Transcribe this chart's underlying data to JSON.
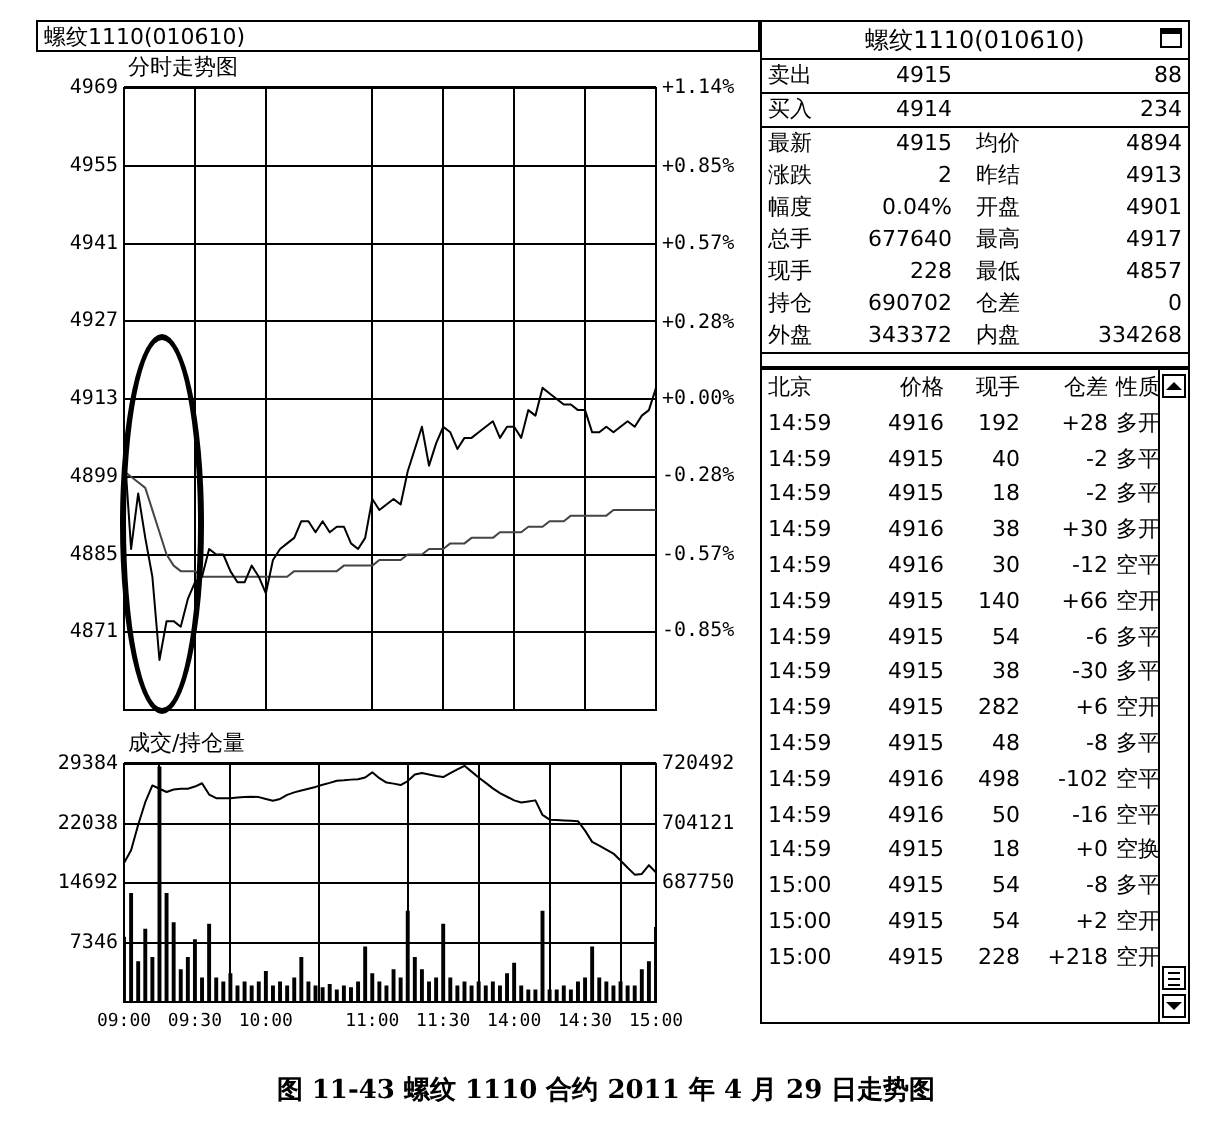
{
  "chart_data": [
    {
      "type": "line",
      "subtitle": "螺纹1110(010610)",
      "title": "分时走势图",
      "annotations": [
        "图 11-43  螺纹 1110 合约 2011 年 4 月 29 日走势图"
      ],
      "categories": [
        null,
        null,
        null,
        null,
        null,
        null,
        null,
        null,
        null,
        null,
        null,
        null,
        null,
        null,
        null,
        null,
        null,
        null,
        null,
        null,
        null,
        null,
        null,
        null,
        null,
        null,
        null,
        null,
        null,
        null,
        null,
        null,
        null,
        null,
        null,
        null,
        null,
        null,
        null,
        null,
        null,
        null,
        null,
        null,
        null,
        null,
        null,
        null,
        null,
        null,
        null,
        null,
        null,
        null,
        null,
        null,
        null,
        null,
        null,
        null,
        null,
        null,
        null,
        null,
        null,
        null,
        null,
        null,
        null,
        null,
        null,
        null,
        null,
        null,
        null,
        null
      ],
      "ylim": [
        4857,
        4969
      ],
      "yticks": [
        4871,
        4885,
        4899,
        4913,
        4927,
        4941,
        4955,
        4969
      ],
      "y2lim": [
        -1.14,
        1.14
      ],
      "y2ticks": [
        {
          "value": -0.85,
          "label": "-0.85%"
        },
        {
          "value": -0.57,
          "label": "-0.57%"
        },
        {
          "value": -0.28,
          "label": "-0.28%"
        },
        {
          "value": 0,
          "label": "+0.00%"
        },
        {
          "value": 0.28,
          "label": "+0.28%"
        },
        {
          "value": 0.57,
          "label": "+0.57%"
        },
        {
          "value": 0.85,
          "label": "+0.85%"
        },
        {
          "value": 1.14,
          "label": "+1.14%"
        }
      ],
      "tick_labels": "y",
      "grid": true,
      "legend": false,
      "marker": "none",
      "series": [
        {
          "color": "#000000",
          "values": [
            4905,
            4886,
            4896,
            4888,
            4881,
            4866,
            4873,
            4873,
            4872,
            4877,
            4880,
            4881,
            4886,
            4885,
            4885,
            4882,
            4880,
            4880,
            4883,
            4881,
            4878,
            4884,
            4886,
            4887,
            4888,
            4891,
            4891,
            4889,
            4891,
            4889,
            4890,
            4890,
            4887,
            4886,
            4888,
            4895,
            4893,
            4894,
            4895,
            4894,
            4900,
            4904,
            4908,
            4901,
            4905,
            4908,
            4907,
            4904,
            4906,
            4906,
            4907,
            4908,
            4909,
            4906,
            4908,
            4908,
            4906,
            4911,
            4910,
            4915,
            4914,
            4913,
            4912,
            4912,
            4911,
            4911,
            4907,
            4907,
            4908,
            4907,
            4908,
            4909,
            4908,
            4910,
            4911,
            4915
          ]
        },
        {
          "color": "#444444",
          "values": [
            4900,
            4899,
            4898,
            4897,
            4893,
            4889,
            4885,
            4883,
            4882,
            4882,
            4882,
            4881,
            4881,
            4881,
            4881,
            4881,
            4881,
            4881,
            4881,
            4881,
            4881,
            4881,
            4881,
            4881,
            4882,
            4882,
            4882,
            4882,
            4882,
            4882,
            4882,
            4883,
            4883,
            4883,
            4883,
            4883,
            4884,
            4884,
            4884,
            4884,
            4885,
            4885,
            4885,
            4886,
            4886,
            4886,
            4887,
            4887,
            4887,
            4888,
            4888,
            4888,
            4888,
            4889,
            4889,
            4889,
            4889,
            4890,
            4890,
            4890,
            4891,
            4891,
            4891,
            4892,
            4892,
            4892,
            4892,
            4892,
            4892,
            4893,
            4893,
            4893,
            4893,
            4893,
            4893,
            4893
          ]
        }
      ]
    },
    {
      "type": "bar",
      "title": "成交/持仓量",
      "categories": [
        "09:00",
        null,
        null,
        null,
        null,
        null,
        null,
        null,
        null,
        null,
        "09:30",
        null,
        null,
        null,
        null,
        null,
        null,
        null,
        null,
        null,
        "10:00",
        null,
        null,
        null,
        null,
        null,
        null,
        null,
        null,
        null,
        null,
        null,
        null,
        null,
        null,
        "11:00",
        null,
        null,
        null,
        null,
        null,
        null,
        null,
        null,
        null,
        "11:30",
        null,
        null,
        null,
        null,
        null,
        null,
        null,
        null,
        null,
        "14:00",
        null,
        null,
        null,
        null,
        null,
        null,
        null,
        null,
        null,
        "14:30",
        null,
        null,
        null,
        null,
        null,
        null,
        null,
        null,
        null,
        "15:00"
      ],
      "ylim": [
        0,
        29384
      ],
      "yticks": [
        7346,
        14692,
        22038,
        29384
      ],
      "y2lim": [
        655008,
        720492
      ],
      "y2ticks": [
        687750,
        704121,
        720492
      ],
      "grid": true,
      "legend": false,
      "marker": "none",
      "series": [
        {
          "type": "bar",
          "color": "#000000",
          "values": [
            8000,
            13400,
            5000,
            9000,
            5500,
            29000,
            13400,
            9800,
            4000,
            5500,
            7700,
            3000,
            9600,
            3000,
            2500,
            3500,
            2000,
            2500,
            2000,
            2500,
            3800,
            2000,
            2500,
            2000,
            3000,
            5500,
            2500,
            2000,
            1800,
            2200,
            1500,
            2000,
            1800,
            2500,
            6800,
            3500,
            2500,
            2000,
            4000,
            3000,
            11200,
            5500,
            4000,
            2500,
            3000,
            9600,
            3000,
            2000,
            2500,
            2000,
            2500,
            2000,
            2500,
            2000,
            3500,
            4800,
            2000,
            1500,
            1500,
            11200,
            1500,
            1500,
            2000,
            1500,
            2500,
            3000,
            6800,
            3000,
            2500,
            2000,
            2500,
            2000,
            2000,
            4000,
            5000,
            9200
          ]
        },
        {
          "type": "line",
          "axis": "y2",
          "color": "#000000",
          "values": [
            693300,
            696800,
            703800,
            710000,
            714600,
            713700,
            712800,
            713500,
            713700,
            713700,
            714300,
            715200,
            712100,
            711100,
            711100,
            711100,
            711300,
            711400,
            711500,
            711400,
            710900,
            710400,
            710900,
            712000,
            712700,
            713200,
            713700,
            714200,
            714800,
            715300,
            715900,
            716000,
            716200,
            716300,
            716800,
            718200,
            716600,
            715400,
            715100,
            714700,
            715800,
            717600,
            718000,
            717600,
            717200,
            716900,
            718000,
            719000,
            720000,
            718400,
            716800,
            715300,
            713800,
            712500,
            711500,
            710500,
            709900,
            710200,
            710500,
            706500,
            705200,
            705100,
            705000,
            704900,
            704800,
            702200,
            699100,
            698100,
            697000,
            695900,
            694000,
            692000,
            690100,
            690300,
            692700,
            690700
          ]
        }
      ]
    },
    {
      "type": "other",
      "title": "螺纹1110(010610)",
      "annotations": [
        "卖出",
        "4915",
        "88",
        "买入",
        "4914",
        "234",
        "最新",
        "4915",
        "均价",
        "4894",
        "涨跌",
        "2",
        "昨结",
        "4913",
        "幅度",
        "0.04%",
        "开盘",
        "4901",
        "总手",
        "677640",
        "最高",
        "4917",
        "现手",
        "228",
        "最低",
        "4857",
        "持仓",
        "690702",
        "仓差",
        "0",
        "外盘",
        "343372",
        "内盘",
        "334268"
      ]
    },
    {
      "type": "other",
      "annotations": [
        "北京",
        "价格",
        "现手",
        "仓差",
        "性质",
        "14:59",
        "4916",
        "192",
        "+28",
        "多开",
        "14:59",
        "4915",
        "40",
        "-2",
        "多平",
        "14:59",
        "4915",
        "18",
        "-2",
        "多平",
        "14:59",
        "4916",
        "38",
        "+30",
        "多开",
        "14:59",
        "4916",
        "30",
        "-12",
        "空平",
        "14:59",
        "4915",
        "140",
        "+66",
        "空开",
        "14:59",
        "4915",
        "54",
        "-6",
        "多平",
        "14:59",
        "4915",
        "38",
        "-30",
        "多平",
        "14:59",
        "4915",
        "282",
        "+6",
        "空开",
        "14:59",
        "4915",
        "48",
        "-8",
        "多平",
        "14:59",
        "4916",
        "498",
        "-102",
        "空平",
        "14:59",
        "4916",
        "50",
        "-16",
        "空平",
        "14:59",
        "4915",
        "18",
        "+0",
        "空换",
        "15:00",
        "4915",
        "54",
        "-8",
        "多平",
        "15:00",
        "4915",
        "54",
        "+2",
        "空开",
        "15:00",
        "4915",
        "228",
        "+218",
        "空开"
      ]
    }
  ]
}
